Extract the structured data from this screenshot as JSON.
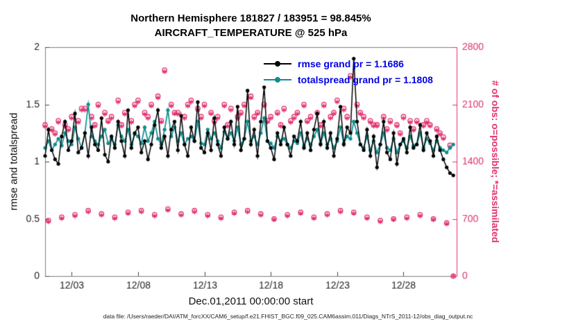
{
  "title": {
    "line1": "Northern Hemisphere 181827 / 183951 = 98.845%",
    "line2": "AIRCRAFT_TEMPERATURE @ 525 hPa"
  },
  "legend": {
    "rmse_label": "rmse grand pr = 1.1686",
    "totalspread_label": "totalspread grand pr = 1.1808"
  },
  "axes": {
    "ylabel_left": "rmse and totalspread",
    "ylabel_right": "# of obs: o=possible; *=assimilated",
    "xlabel": "Dec.01,2011 00:00:00 start"
  },
  "footer": "data file: /Users/raeder/DAI/ATM_forcXX/CAM6_setup/f.e21.FHIST_BGC.f09_025.CAM6assim.011/Diags_NTrS_2011-12/obs_diag_output.nc",
  "colors": {
    "rmse": "#000000",
    "totalspread": "#0e8d8f",
    "obs": "#e0306e",
    "legend_text": "#0000e6",
    "axis_box": "#7c7c7c",
    "tick_text": "#222222"
  },
  "chart_data": {
    "type": "line",
    "title": "Northern Hemisphere 181827 / 183951 = 98.845% | AIRCRAFT_TEMPERATURE @ 525 hPa",
    "xlabel": "Dec.01,2011 00:00:00 start",
    "ylabel_left": "rmse and totalspread",
    "ylabel_right": "# of obs: o=possible; *=assimilated",
    "xlim": [
      1,
      32
    ],
    "ylim_left": [
      0,
      2
    ],
    "ylim_right": [
      0,
      2800
    ],
    "xticks": [
      3,
      8,
      13,
      18,
      23,
      28
    ],
    "xtick_labels": [
      "12/03",
      "12/08",
      "12/13",
      "12/18",
      "12/23",
      "12/28"
    ],
    "yticks_left": [
      0,
      0.5,
      1,
      1.5,
      2
    ],
    "ytick_labels_left": [
      "0",
      "0.5",
      "1",
      "1.5",
      "2"
    ],
    "yticks_right": [
      0,
      700,
      1400,
      2100,
      2800
    ],
    "ytick_labels_right": [
      "0",
      "700",
      "1400",
      "2100",
      "2800"
    ],
    "x_start_day": 1.0,
    "x_step_days": 0.25,
    "grid": false,
    "legend_position": "top-center-inside",
    "series": [
      {
        "name": "rmse",
        "axis": "left",
        "marker": "dot",
        "grand_pr": 1.1686,
        "values": [
          1.05,
          1.28,
          1.1,
          1.02,
          0.98,
          1.22,
          1.35,
          1.1,
          1.18,
          1.42,
          1.08,
          1.12,
          1.25,
          1.05,
          1.3,
          1.15,
          1.1,
          1.38,
          1.06,
          1.0,
          1.22,
          1.12,
          1.35,
          1.18,
          1.05,
          1.45,
          1.12,
          1.25,
          1.3,
          1.08,
          1.18,
          1.02,
          1.15,
          1.32,
          1.45,
          1.12,
          1.22,
          1.05,
          1.28,
          1.35,
          1.1,
          1.4,
          1.15,
          1.05,
          1.3,
          1.18,
          1.52,
          1.12,
          1.08,
          1.25,
          1.1,
          1.38,
          1.15,
          1.05,
          1.3,
          1.2,
          1.35,
          1.15,
          1.48,
          1.1,
          1.2,
          1.62,
          1.15,
          1.28,
          1.05,
          1.35,
          1.65,
          1.18,
          1.12,
          1.02,
          1.25,
          1.15,
          1.3,
          1.15,
          1.05,
          1.22,
          1.18,
          1.35,
          1.12,
          1.25,
          1.1,
          1.28,
          1.42,
          1.15,
          1.35,
          1.12,
          1.25,
          1.05,
          1.2,
          1.48,
          1.15,
          1.3,
          1.25,
          1.9,
          1.35,
          1.15,
          1.1,
          1.28,
          1.05,
          1.22,
          0.95,
          1.15,
          1.35,
          1.08,
          1.02,
          1.25,
          0.98,
          1.15,
          1.2,
          1.08,
          1.3,
          1.12,
          1.15,
          1.32,
          1.1,
          1.25,
          1.18,
          1.05,
          1.22,
          1.1,
          1.02,
          0.95,
          0.9,
          0.88
        ]
      },
      {
        "name": "totalspread",
        "axis": "left",
        "marker": "dot",
        "grand_pr": 1.1808,
        "values": [
          1.12,
          1.18,
          1.1,
          1.15,
          1.2,
          1.14,
          1.25,
          1.18,
          1.15,
          1.3,
          1.2,
          1.12,
          1.25,
          1.5,
          1.22,
          1.18,
          1.15,
          1.22,
          1.28,
          1.16,
          1.2,
          1.15,
          1.32,
          1.22,
          1.18,
          1.28,
          1.15,
          1.24,
          1.22,
          1.16,
          1.3,
          1.18,
          1.25,
          1.35,
          1.2,
          1.15,
          1.28,
          1.45,
          1.22,
          1.3,
          1.18,
          1.25,
          1.15,
          1.2,
          1.22,
          1.18,
          1.35,
          1.16,
          1.15,
          1.28,
          1.2,
          1.25,
          1.18,
          1.12,
          1.26,
          1.2,
          1.25,
          1.18,
          1.3,
          1.15,
          1.2,
          1.35,
          1.18,
          1.22,
          1.15,
          1.25,
          1.38,
          1.18,
          1.16,
          1.12,
          1.22,
          1.18,
          1.2,
          1.15,
          1.12,
          1.18,
          1.16,
          1.25,
          1.14,
          1.2,
          1.15,
          1.22,
          1.28,
          1.16,
          1.25,
          1.15,
          1.2,
          1.12,
          1.18,
          1.3,
          1.16,
          1.22,
          1.2,
          1.35,
          1.25,
          1.15,
          1.12,
          1.22,
          1.1,
          1.18,
          1.08,
          1.15,
          1.25,
          1.12,
          1.1,
          1.2,
          1.08,
          1.15,
          1.18,
          1.12,
          1.22,
          1.14,
          1.15,
          1.25,
          1.12,
          1.2,
          1.16,
          1.1,
          1.18,
          1.12,
          1.1,
          1.08,
          1.12,
          1.15
        ]
      },
      {
        "name": "possible",
        "axis": "right",
        "marker": "o",
        "values": [
          1850,
          680,
          1800,
          1750,
          1900,
          720,
          1850,
          1800,
          1950,
          750,
          1900,
          2050,
          2050,
          800,
          1950,
          1850,
          2100,
          760,
          2000,
          1900,
          1950,
          720,
          2150,
          1850,
          2000,
          780,
          1900,
          2100,
          2150,
          800,
          2000,
          1950,
          2100,
          750,
          2200,
          1900,
          2520,
          820,
          2100,
          2000,
          2000,
          760,
          1950,
          2100,
          2150,
          800,
          2050,
          1950,
          2100,
          750,
          2000,
          1900,
          1950,
          720,
          2100,
          1850,
          2050,
          780,
          1950,
          2000,
          2100,
          800,
          2200,
          1950,
          2000,
          760,
          2100,
          1900,
          1950,
          700,
          2000,
          1850,
          2050,
          750,
          1900,
          1950,
          2000,
          780,
          2100,
          1900,
          1950,
          720,
          2000,
          1850,
          2100,
          760,
          1950,
          2000,
          2150,
          800,
          2050,
          1950,
          2450,
          780,
          2100,
          2000,
          1950,
          720,
          1900,
          1850,
          1850,
          680,
          1950,
          1800,
          1900,
          700,
          1850,
          1750,
          1950,
          720,
          1900,
          1800,
          1900,
          750,
          1850,
          1900,
          1850,
          700,
          1800,
          1750,
          1700,
          650,
          1600,
          0
        ]
      },
      {
        "name": "assimilated",
        "axis": "right",
        "marker": "*",
        "values": [
          1830,
          665,
          1785,
          1735,
          1880,
          705,
          1830,
          1785,
          1930,
          735,
          1880,
          2030,
          2030,
          785,
          1930,
          1835,
          2080,
          745,
          1980,
          1885,
          1930,
          705,
          2130,
          1835,
          1980,
          765,
          1880,
          2080,
          2130,
          785,
          1980,
          1930,
          2080,
          735,
          2180,
          1885,
          2500,
          805,
          2080,
          1985,
          1980,
          745,
          1930,
          2080,
          2130,
          785,
          2030,
          1930,
          2080,
          735,
          1985,
          1880,
          1930,
          705,
          2080,
          1835,
          2030,
          765,
          1930,
          1985,
          2080,
          785,
          2180,
          1930,
          1985,
          745,
          2080,
          1885,
          1930,
          690,
          1985,
          1835,
          2030,
          735,
          1880,
          1930,
          1985,
          765,
          2080,
          1885,
          1930,
          705,
          1985,
          1835,
          2080,
          745,
          1930,
          1985,
          2130,
          785,
          2030,
          1930,
          2430,
          765,
          2080,
          1985,
          1930,
          705,
          1880,
          1835,
          1835,
          665,
          1930,
          1785,
          1880,
          690,
          1835,
          1735,
          1930,
          705,
          1880,
          1785,
          1880,
          735,
          1835,
          1880,
          1835,
          690,
          1785,
          1735,
          1680,
          640,
          1580,
          0
        ]
      }
    ]
  }
}
